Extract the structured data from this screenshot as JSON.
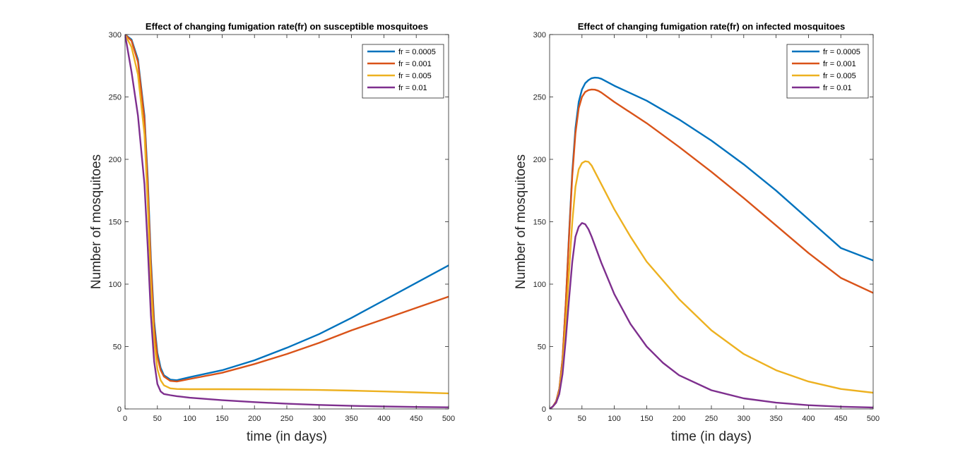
{
  "chart_data": [
    {
      "type": "line",
      "title": "Effect of changing fumigation rate(fr) on susceptible mosquitoes",
      "xlabel": "time (in days)",
      "ylabel": "Number of mosquitoes",
      "xlim": [
        0,
        500
      ],
      "ylim": [
        0,
        300
      ],
      "xticks": [
        0,
        50,
        100,
        150,
        200,
        250,
        300,
        350,
        400,
        450,
        500
      ],
      "yticks": [
        0,
        50,
        100,
        150,
        200,
        250,
        300
      ],
      "grid": false,
      "legend_position": "top-right",
      "series": [
        {
          "name": "fr = 0.0005",
          "color": "#0072BD",
          "x": [
            0,
            10,
            20,
            30,
            35,
            40,
            45,
            50,
            55,
            60,
            70,
            80,
            100,
            150,
            200,
            250,
            300,
            350,
            400,
            450,
            500
          ],
          "y": [
            300,
            296,
            280,
            235,
            185,
            120,
            70,
            45,
            33,
            27,
            23.5,
            23,
            25.5,
            31,
            39,
            49,
            60,
            73,
            87,
            101,
            115
          ]
        },
        {
          "name": "fr = 0.001",
          "color": "#D95319",
          "x": [
            0,
            10,
            20,
            30,
            35,
            40,
            45,
            50,
            55,
            60,
            70,
            80,
            100,
            150,
            200,
            250,
            300,
            350,
            400,
            450,
            500
          ],
          "y": [
            300,
            295,
            278,
            232,
            180,
            115,
            66,
            42,
            31,
            26,
            22.5,
            22,
            24,
            29,
            36,
            44,
            53,
            63,
            72,
            81,
            90
          ]
        },
        {
          "name": "fr = 0.005",
          "color": "#EDB120",
          "x": [
            0,
            10,
            20,
            30,
            35,
            40,
            45,
            50,
            55,
            60,
            70,
            80,
            100,
            150,
            200,
            250,
            300,
            350,
            400,
            450,
            500
          ],
          "y": [
            300,
            290,
            268,
            220,
            165,
            100,
            54,
            32,
            23,
            19,
            16.5,
            16,
            15.8,
            15.8,
            15.7,
            15.5,
            15.2,
            14.7,
            14,
            13.3,
            12.5
          ]
        },
        {
          "name": "fr = 0.01",
          "color": "#7E2F8E",
          "x": [
            0,
            10,
            20,
            30,
            35,
            40,
            45,
            50,
            55,
            60,
            70,
            80,
            100,
            150,
            200,
            250,
            300,
            350,
            400,
            450,
            500
          ],
          "y": [
            300,
            270,
            235,
            180,
            130,
            75,
            38,
            20,
            14,
            12,
            11,
            10.2,
            9,
            7,
            5.5,
            4.2,
            3.2,
            2.5,
            2,
            1.6,
            1.3
          ]
        }
      ]
    },
    {
      "type": "line",
      "title": "Effect of changing fumigation rate(fr) on infected mosquitoes",
      "xlabel": "time (in days)",
      "ylabel": "Number of mosquitoes",
      "xlim": [
        0,
        500
      ],
      "ylim": [
        0,
        300
      ],
      "xticks": [
        0,
        50,
        100,
        150,
        200,
        250,
        300,
        350,
        400,
        450,
        500
      ],
      "yticks": [
        0,
        50,
        100,
        150,
        200,
        250,
        300
      ],
      "grid": false,
      "legend_position": "top-right",
      "series": [
        {
          "name": "fr = 0.0005",
          "color": "#0072BD",
          "x": [
            0,
            5,
            10,
            15,
            20,
            25,
            30,
            35,
            40,
            45,
            50,
            55,
            60,
            65,
            70,
            75,
            80,
            100,
            150,
            200,
            250,
            300,
            350,
            400,
            450,
            500
          ],
          "y": [
            0,
            2,
            6,
            16,
            40,
            85,
            140,
            190,
            225,
            246,
            256,
            261,
            263.5,
            265,
            265.5,
            265.3,
            264.5,
            259,
            247,
            232,
            215,
            196,
            175,
            152,
            129,
            119
          ]
        },
        {
          "name": "fr = 0.001",
          "color": "#D95319",
          "x": [
            0,
            5,
            10,
            15,
            20,
            25,
            30,
            35,
            40,
            45,
            50,
            55,
            60,
            65,
            70,
            75,
            80,
            100,
            150,
            200,
            250,
            300,
            350,
            400,
            450,
            500
          ],
          "y": [
            0,
            2,
            6,
            16,
            40,
            85,
            138,
            187,
            221,
            241,
            250,
            254,
            255.5,
            256,
            255.8,
            255,
            253.5,
            246,
            229,
            210,
            190,
            169,
            147,
            125,
            105,
            93
          ]
        },
        {
          "name": "fr = 0.005",
          "color": "#EDB120",
          "x": [
            0,
            5,
            10,
            15,
            20,
            25,
            30,
            35,
            40,
            45,
            50,
            55,
            60,
            65,
            70,
            80,
            100,
            125,
            150,
            200,
            250,
            300,
            350,
            400,
            450,
            500
          ],
          "y": [
            0,
            2,
            5,
            14,
            34,
            70,
            110,
            150,
            178,
            192,
            197,
            198.5,
            198,
            195,
            190,
            180,
            160,
            138,
            118,
            88,
            63,
            44,
            31,
            22,
            16,
            13
          ]
        },
        {
          "name": "fr = 0.01",
          "color": "#7E2F8E",
          "x": [
            0,
            5,
            10,
            15,
            20,
            25,
            30,
            35,
            40,
            45,
            50,
            55,
            60,
            65,
            70,
            80,
            100,
            125,
            150,
            175,
            200,
            250,
            300,
            350,
            400,
            450,
            500
          ],
          "y": [
            0,
            2,
            5,
            12,
            28,
            56,
            88,
            118,
            138,
            146,
            149,
            148,
            144,
            138,
            131,
            117,
            92,
            68,
            50,
            37,
            27,
            15,
            8.5,
            5,
            3,
            1.8,
            1.2
          ]
        }
      ]
    }
  ]
}
